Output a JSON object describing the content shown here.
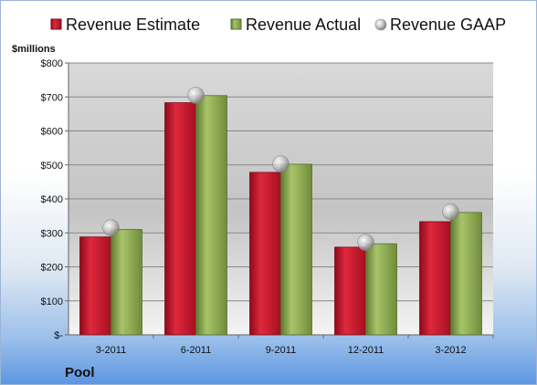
{
  "chart_data": {
    "type": "bar",
    "unit_label": "$millions",
    "company": "Pool",
    "categories": [
      "3-2011",
      "6-2011",
      "9-2011",
      "12-2011",
      "3-2012"
    ],
    "series": [
      {
        "name": "Revenue Estimate",
        "kind": "bar",
        "color": "#c8102e",
        "values": [
          288,
          683,
          478,
          258,
          333
        ]
      },
      {
        "name": "Revenue Actual",
        "kind": "bar",
        "color": "#8fb050",
        "values": [
          310,
          704,
          502,
          268,
          360
        ]
      },
      {
        "name": "Revenue GAAP",
        "kind": "marker",
        "color": "#b0b0b0",
        "values": [
          315,
          705,
          503,
          272,
          362
        ]
      }
    ],
    "ylim": [
      0,
      800
    ],
    "yticks": [
      0,
      100,
      200,
      300,
      400,
      500,
      600,
      700,
      800
    ],
    "ytick_labels": [
      "$-",
      "$100",
      "$200",
      "$300",
      "$400",
      "$500",
      "$600",
      "$700",
      "$800"
    ],
    "legend_position": "top",
    "grid": true
  }
}
